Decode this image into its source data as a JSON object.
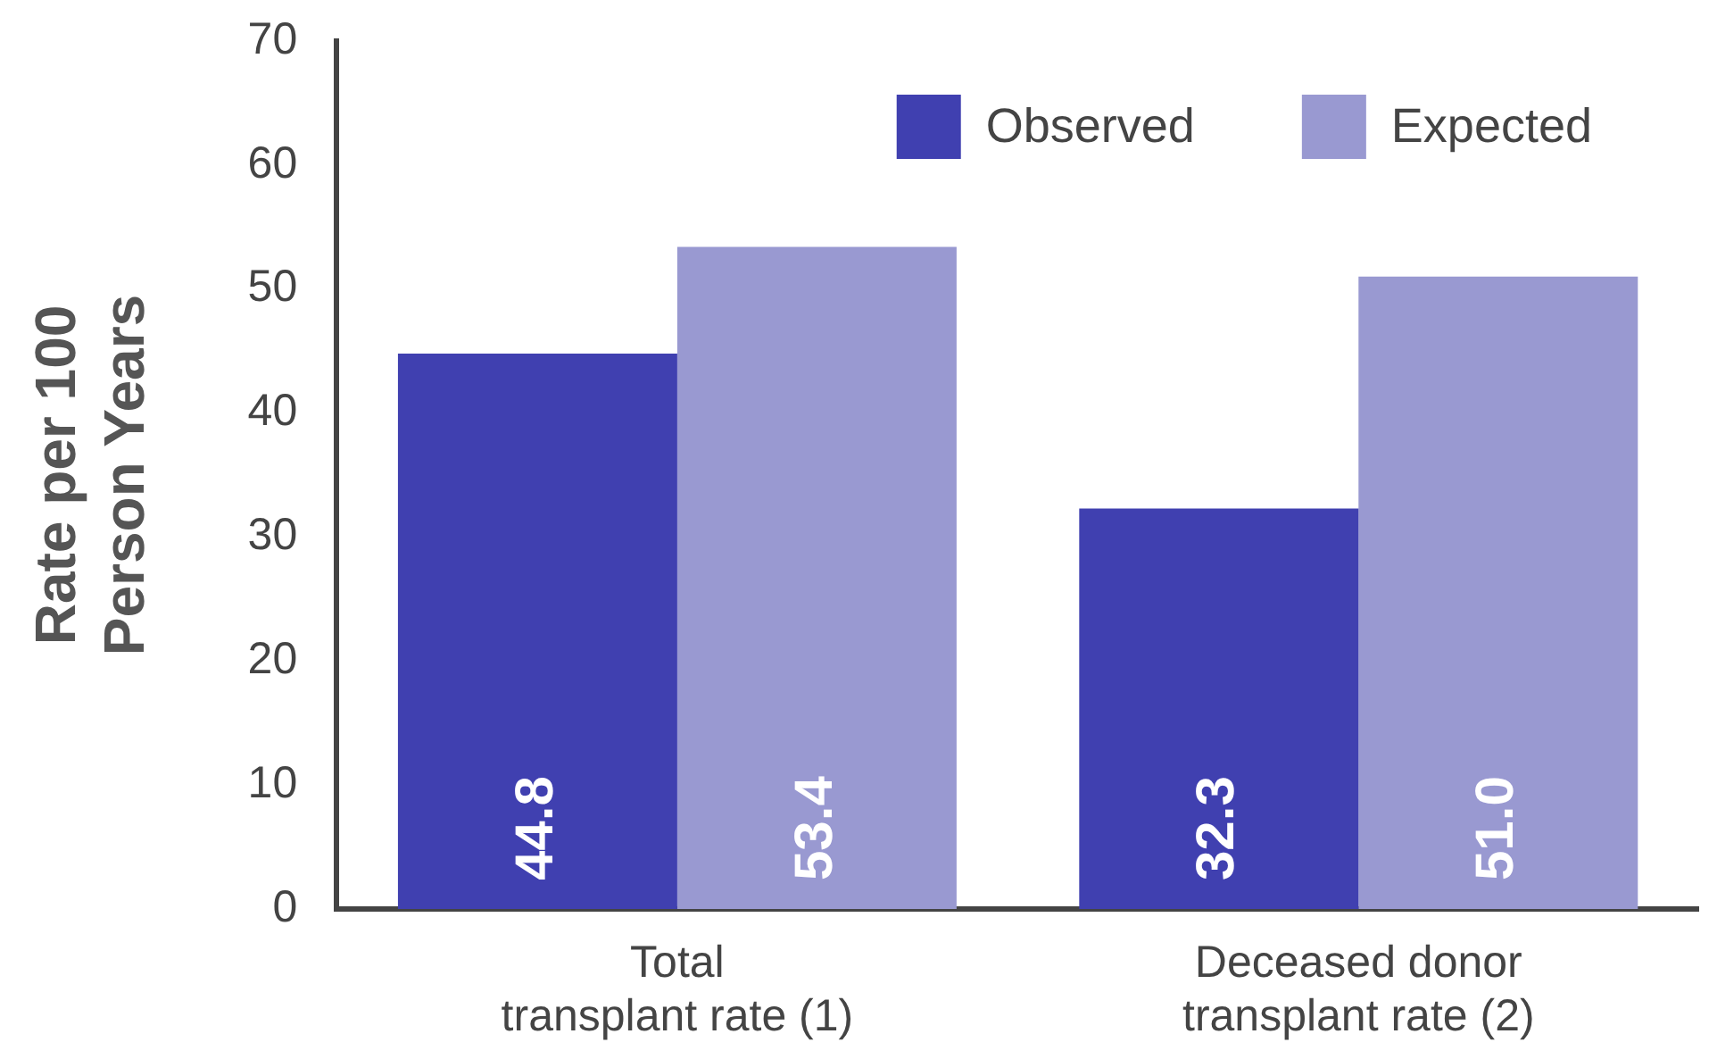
{
  "chart_data": {
    "type": "bar",
    "ylabel": "Rate per 100\nPerson Years",
    "categories": [
      "Total\ntransplant rate (1)",
      "Deceased donor\ntransplant rate (2)"
    ],
    "series": [
      {
        "name": "Observed",
        "color": "#4040b0",
        "values": [
          44.8,
          32.3
        ],
        "value_labels": [
          "44.8",
          "32.3"
        ]
      },
      {
        "name": "Expected",
        "color": "#9999d1",
        "values": [
          53.4,
          51.0
        ],
        "value_labels": [
          "53.4",
          "51.0"
        ]
      }
    ],
    "ylim": [
      0,
      70
    ],
    "yticks": [
      0,
      10,
      20,
      30,
      40,
      50,
      60,
      70
    ],
    "grid": false,
    "legend": "top right"
  }
}
